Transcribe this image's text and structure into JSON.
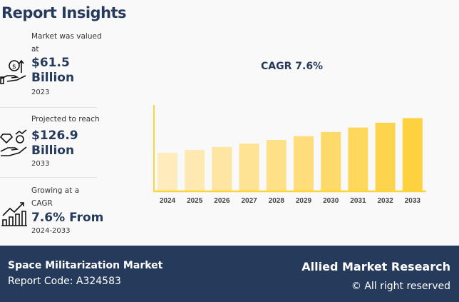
{
  "title": "Report Insights",
  "cards": [
    {
      "label": "Market was valued at",
      "value": "$61.5 Billion",
      "year": "2023",
      "icon": "hand-money-growth-icon"
    },
    {
      "label": "Projected to reach",
      "value": "$126.9 Billion",
      "year": "2033",
      "icon": "hand-diamond-icon"
    },
    {
      "label": "Growing at a CAGR",
      "value": "7.6% From",
      "year": "2024-2033",
      "icon": "bar-growth-icon"
    }
  ],
  "chart_data": {
    "type": "bar",
    "title": "CAGR 7.6%",
    "categories": [
      "2024",
      "2025",
      "2026",
      "2027",
      "2028",
      "2029",
      "2030",
      "2031",
      "2032",
      "2033"
    ],
    "values": [
      66.2,
      71.2,
      76.6,
      82.4,
      88.7,
      95.4,
      102.7,
      110.5,
      118.9,
      126.9
    ],
    "ylim": [
      0,
      150
    ],
    "grid": false,
    "colors": [
      "#feecbd",
      "#feeab0",
      "#fee6a2",
      "#fee395",
      "#fee088",
      "#fedd7a",
      "#feda6b",
      "#fed75d",
      "#fed44f",
      "#fdd140"
    ]
  },
  "footer": {
    "market": "Space Militarization Market",
    "code": "Report Code: A324583",
    "brand": "Allied Market Research",
    "rights": "© All right reserved"
  },
  "colors": {
    "navy": "#263a5b",
    "axis": "#fdd33a"
  }
}
